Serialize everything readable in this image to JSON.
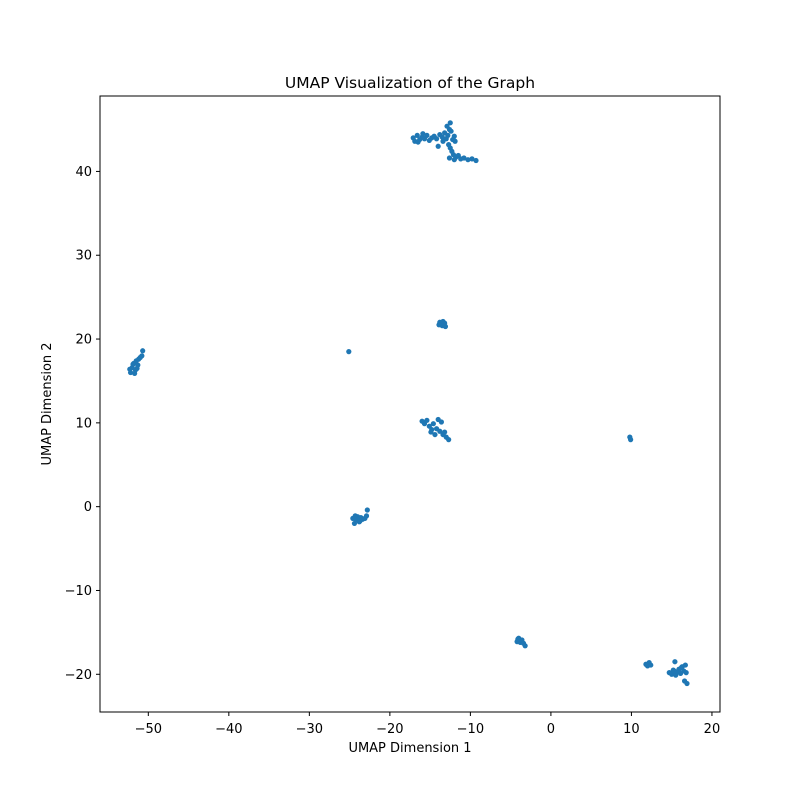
{
  "chart_data": {
    "type": "scatter",
    "title": "UMAP Visualization of the Graph",
    "xlabel": "UMAP Dimension 1",
    "ylabel": "UMAP Dimension 2",
    "xlim": [
      -56,
      21
    ],
    "ylim": [
      -24.5,
      49
    ],
    "xticks": [
      -50,
      -40,
      -30,
      -20,
      -10,
      0,
      10,
      20
    ],
    "yticks": [
      -20,
      -10,
      0,
      10,
      20,
      30,
      40
    ],
    "grid": false,
    "legend": "none",
    "marker_color": "#1f77b4",
    "series": [
      {
        "values": [
          [
            -17.1,
            44.0
          ],
          [
            -16.9,
            43.6
          ],
          [
            -16.6,
            44.3
          ],
          [
            -16.3,
            43.8
          ],
          [
            -16.0,
            44.1
          ],
          [
            -15.7,
            43.9
          ],
          [
            -15.4,
            44.3
          ],
          [
            -15.1,
            43.7
          ],
          [
            -14.8,
            44.0
          ],
          [
            -14.5,
            44.2
          ],
          [
            -14.2,
            43.9
          ],
          [
            -14.0,
            43.0
          ],
          [
            -13.8,
            44.4
          ],
          [
            -13.5,
            44.1
          ],
          [
            -13.2,
            44.6
          ],
          [
            -13.0,
            43.9
          ],
          [
            -12.8,
            44.3
          ],
          [
            -12.6,
            45.0
          ],
          [
            -12.5,
            45.8
          ],
          [
            -12.4,
            44.8
          ],
          [
            -12.2,
            43.8
          ],
          [
            -12.0,
            44.2
          ],
          [
            -11.9,
            43.6
          ],
          [
            -12.7,
            43.2
          ],
          [
            -12.5,
            42.8
          ],
          [
            -12.3,
            42.4
          ],
          [
            -12.1,
            42.0
          ],
          [
            -11.8,
            41.7
          ],
          [
            -11.5,
            41.9
          ],
          [
            -11.2,
            41.5
          ],
          [
            -10.8,
            41.6
          ],
          [
            -10.3,
            41.4
          ],
          [
            -9.8,
            41.5
          ],
          [
            -9.3,
            41.3
          ],
          [
            -12.0,
            41.4
          ],
          [
            -12.6,
            41.6
          ],
          [
            -16.5,
            43.5
          ],
          [
            -15.9,
            44.5
          ],
          [
            -13.4,
            43.6
          ],
          [
            -12.9,
            45.4
          ],
          [
            -13.8,
            22.0
          ],
          [
            -13.5,
            21.6
          ],
          [
            -13.2,
            21.9
          ],
          [
            -13.9,
            21.7
          ],
          [
            -13.4,
            22.1
          ],
          [
            -13.1,
            21.5
          ],
          [
            -25.1,
            18.5
          ],
          [
            -52.2,
            16.0
          ],
          [
            -52.0,
            16.6
          ],
          [
            -51.8,
            17.1
          ],
          [
            -51.6,
            16.3
          ],
          [
            -51.5,
            17.4
          ],
          [
            -51.3,
            16.9
          ],
          [
            -51.7,
            15.9
          ],
          [
            -52.3,
            16.4
          ],
          [
            -51.2,
            17.6
          ],
          [
            -51.0,
            17.8
          ],
          [
            -50.8,
            18.0
          ],
          [
            -50.7,
            18.6
          ],
          [
            -51.9,
            17.0
          ],
          [
            -51.4,
            16.5
          ],
          [
            -16.0,
            10.2
          ],
          [
            -15.7,
            9.9
          ],
          [
            -15.4,
            10.3
          ],
          [
            -15.1,
            9.6
          ],
          [
            -14.8,
            9.2
          ],
          [
            -14.6,
            9.9
          ],
          [
            -14.4,
            8.6
          ],
          [
            -14.2,
            9.3
          ],
          [
            -14.0,
            10.4
          ],
          [
            -13.8,
            9.0
          ],
          [
            -13.6,
            10.1
          ],
          [
            -13.4,
            8.6
          ],
          [
            -13.2,
            8.9
          ],
          [
            -13.0,
            8.3
          ],
          [
            -12.7,
            8.0
          ],
          [
            -14.9,
            8.9
          ],
          [
            9.8,
            8.3
          ],
          [
            9.9,
            8.0
          ],
          [
            -24.6,
            -1.4
          ],
          [
            -24.4,
            -2.0
          ],
          [
            -24.2,
            -1.6
          ],
          [
            -24.0,
            -1.2
          ],
          [
            -23.8,
            -1.8
          ],
          [
            -23.6,
            -1.3
          ],
          [
            -23.4,
            -1.5
          ],
          [
            -23.1,
            -1.4
          ],
          [
            -22.9,
            -1.1
          ],
          [
            -22.8,
            -0.4
          ],
          [
            -24.3,
            -1.1
          ],
          [
            -23.7,
            -1.7
          ],
          [
            -4.2,
            -16.1
          ],
          [
            -4.0,
            -15.7
          ],
          [
            -3.8,
            -16.2
          ],
          [
            -3.6,
            -15.9
          ],
          [
            -3.4,
            -16.3
          ],
          [
            -3.2,
            -16.6
          ],
          [
            -4.1,
            -15.8
          ],
          [
            11.8,
            -18.8
          ],
          [
            12.0,
            -19.0
          ],
          [
            12.2,
            -18.6
          ],
          [
            12.4,
            -18.9
          ],
          [
            14.7,
            -19.8
          ],
          [
            15.0,
            -20.0
          ],
          [
            15.2,
            -19.5
          ],
          [
            15.4,
            -18.5
          ],
          [
            15.5,
            -20.1
          ],
          [
            15.7,
            -19.7
          ],
          [
            15.9,
            -19.4
          ],
          [
            16.1,
            -19.9
          ],
          [
            16.3,
            -19.1
          ],
          [
            16.5,
            -19.6
          ],
          [
            16.7,
            -18.9
          ],
          [
            16.8,
            -19.8
          ],
          [
            16.6,
            -20.8
          ],
          [
            16.9,
            -21.1
          ],
          [
            16.2,
            -19.2
          ],
          [
            15.3,
            -19.6
          ]
        ]
      }
    ]
  }
}
